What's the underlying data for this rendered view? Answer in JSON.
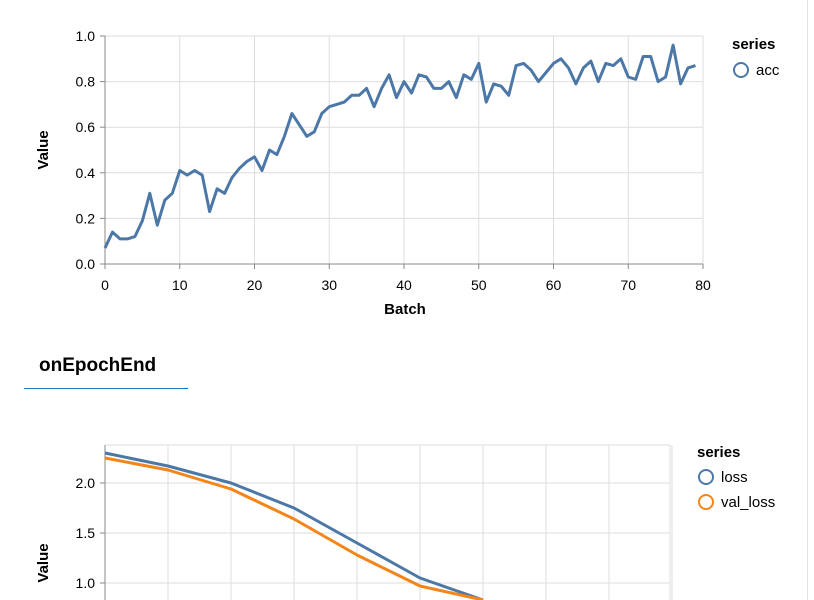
{
  "section": {
    "title": "onEpochEnd"
  },
  "chart_data": [
    {
      "type": "line",
      "xlabel": "Batch",
      "ylabel": "Value",
      "xlim": [
        0,
        80
      ],
      "ylim": [
        0,
        1
      ],
      "xticks": [
        0,
        10,
        20,
        30,
        40,
        50,
        60,
        70,
        80
      ],
      "yticks": [
        "0.0",
        "0.2",
        "0.4",
        "0.6",
        "0.8",
        "1.0"
      ],
      "grid": true,
      "legend": {
        "title": "series",
        "placement": "top-right"
      },
      "series": [
        {
          "name": "acc",
          "color": "#4c78a8",
          "x": [
            0,
            1,
            2,
            3,
            4,
            5,
            6,
            7,
            8,
            9,
            10,
            11,
            12,
            13,
            14,
            15,
            16,
            17,
            18,
            19,
            20,
            21,
            22,
            23,
            24,
            25,
            26,
            27,
            28,
            29,
            30,
            31,
            32,
            33,
            34,
            35,
            36,
            37,
            38,
            39,
            40,
            41,
            42,
            43,
            44,
            45,
            46,
            47,
            48,
            49,
            50,
            51,
            52,
            53,
            54,
            55,
            56,
            57,
            58,
            59,
            60,
            61,
            62,
            63,
            64,
            65,
            66,
            67,
            68,
            69,
            70,
            71,
            72,
            73,
            74,
            75,
            76,
            77,
            78,
            79
          ],
          "y": [
            0.07,
            0.14,
            0.11,
            0.11,
            0.12,
            0.19,
            0.31,
            0.17,
            0.28,
            0.31,
            0.41,
            0.39,
            0.41,
            0.39,
            0.23,
            0.33,
            0.31,
            0.38,
            0.42,
            0.45,
            0.47,
            0.41,
            0.5,
            0.48,
            0.56,
            0.66,
            0.61,
            0.56,
            0.58,
            0.66,
            0.69,
            0.7,
            0.71,
            0.74,
            0.74,
            0.77,
            0.69,
            0.77,
            0.83,
            0.73,
            0.8,
            0.75,
            0.83,
            0.82,
            0.77,
            0.77,
            0.8,
            0.73,
            0.83,
            0.81,
            0.88,
            0.71,
            0.79,
            0.78,
            0.74,
            0.87,
            0.88,
            0.85,
            0.8,
            0.84,
            0.88,
            0.9,
            0.86,
            0.79,
            0.86,
            0.89,
            0.8,
            0.88,
            0.87,
            0.9,
            0.82,
            0.81,
            0.91,
            0.91,
            0.8,
            0.82,
            0.96,
            0.79,
            0.86,
            0.87
          ]
        }
      ]
    },
    {
      "type": "line",
      "xlabel": "",
      "ylabel": "Value",
      "ylim": [
        0.85,
        2.35
      ],
      "yticks": [
        "1.0",
        "1.5",
        "2.0"
      ],
      "grid": true,
      "legend": {
        "title": "series",
        "placement": "top-right"
      },
      "series": [
        {
          "name": "loss",
          "color": "#4c78a8",
          "x": [
            0,
            1,
            2,
            3,
            4,
            5,
            6
          ],
          "y": [
            2.3,
            2.17,
            2.0,
            1.75,
            1.4,
            1.05,
            0.83
          ]
        },
        {
          "name": "val_loss",
          "color": "#f58518",
          "x": [
            0,
            1,
            2,
            3,
            4,
            5,
            6
          ],
          "y": [
            2.25,
            2.13,
            1.94,
            1.64,
            1.28,
            0.97,
            0.83
          ]
        }
      ]
    }
  ]
}
